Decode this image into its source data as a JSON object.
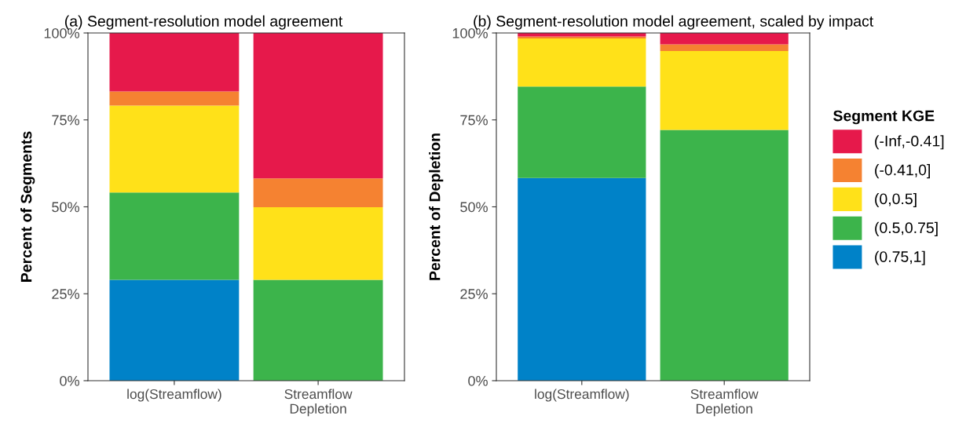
{
  "chart_data": [
    {
      "type": "bar",
      "stacked": true,
      "title": "(a) Segment-resolution model agreement",
      "ylabel": "Percent of Segments",
      "categories": [
        "log(Streamflow)",
        "Streamflow\nDepletion"
      ],
      "series": [
        {
          "color": "#0082c8",
          "values": [
            29.0,
            0
          ]
        },
        {
          "color": "#3cb44b",
          "values": [
            25.1,
            29.0
          ]
        },
        {
          "color": "#ffe119",
          "values": [
            25.0,
            20.9
          ]
        },
        {
          "color": "#f58231",
          "values": [
            4.1,
            8.3
          ]
        },
        {
          "color": "#e6194b",
          "values": [
            16.8,
            41.8
          ]
        }
      ],
      "ylim": [
        0,
        100
      ],
      "yticks": [
        {
          "value": 0,
          "label": "0%"
        },
        {
          "value": 25,
          "label": "25%"
        },
        {
          "value": 50,
          "label": "50%"
        },
        {
          "value": 75,
          "label": "75%"
        },
        {
          "value": 100,
          "label": "100%"
        }
      ],
      "grid": false,
      "legend": false
    },
    {
      "type": "bar",
      "stacked": true,
      "title": "(b) Segment-resolution model agreement, scaled by impact",
      "ylabel": "Percent of Depletion",
      "legend_title": "Segment KGE",
      "categories": [
        "log(Streamflow)",
        "Streamflow\nDepletion"
      ],
      "series": [
        {
          "name": "(0.75,1]",
          "color": "#0082c8",
          "values": [
            58.3,
            0
          ]
        },
        {
          "name": "(0.5,0.75]",
          "color": "#3cb44b",
          "values": [
            26.3,
            72.1
          ]
        },
        {
          "name": "(0,0.5]",
          "color": "#ffe119",
          "values": [
            13.8,
            22.7
          ]
        },
        {
          "name": "(-0.41,0]",
          "color": "#f58231",
          "values": [
            0.6,
            1.9
          ]
        },
        {
          "name": "(-Inf,-0.41]",
          "color": "#e6194b",
          "values": [
            1.0,
            3.3
          ]
        }
      ],
      "ylim": [
        0,
        100
      ],
      "yticks": [
        {
          "value": 0,
          "label": "0%"
        },
        {
          "value": 25,
          "label": "25%"
        },
        {
          "value": 50,
          "label": "50%"
        },
        {
          "value": 75,
          "label": "75%"
        },
        {
          "value": 100,
          "label": "100%"
        }
      ],
      "grid": false,
      "legend": "right"
    }
  ]
}
